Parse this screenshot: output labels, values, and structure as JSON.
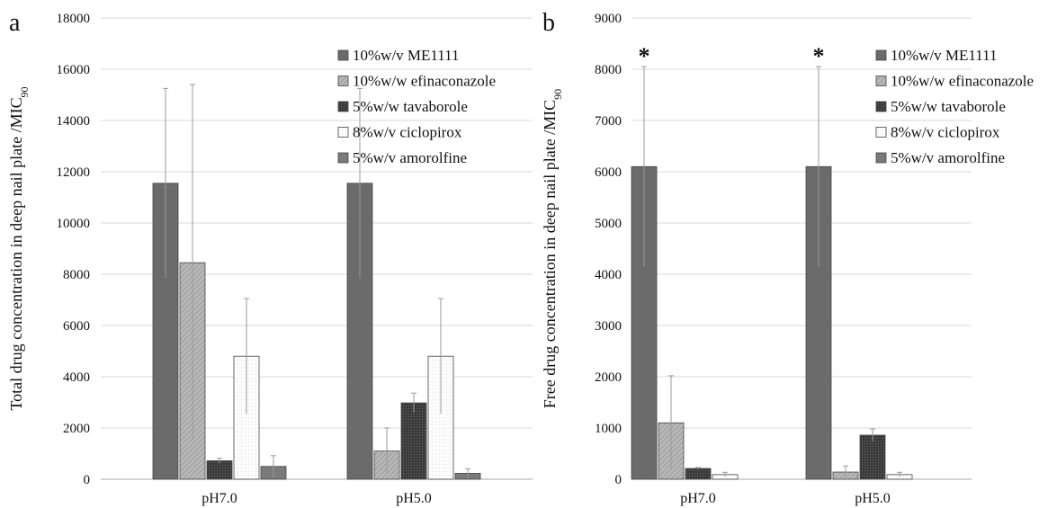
{
  "chart_data": [
    {
      "panel_label": "a",
      "type": "bar",
      "categories": [
        "pH7.0",
        "pH5.0"
      ],
      "ylabel": "Total drug concentration in deep nail plate /MIC",
      "ylabel_sub": "90",
      "ylim": [
        0,
        18000
      ],
      "yticks": [
        0,
        2000,
        4000,
        6000,
        8000,
        10000,
        12000,
        14000,
        16000,
        18000
      ],
      "yticks_text": [
        "0",
        "2000",
        "4000",
        "6000",
        "8000",
        "10000",
        "12000",
        "14000",
        "16000",
        "18000"
      ],
      "grid": true,
      "legend_position": "top-right",
      "series": [
        {
          "name": "10%w/v ME1111",
          "values": [
            11550,
            11550
          ],
          "error": [
            3700,
            3700
          ],
          "color": "#6b6b6b",
          "pattern": "solid"
        },
        {
          "name": "10%w/w efinaconazole",
          "values": [
            8450,
            1100
          ],
          "error": [
            6950,
            900
          ],
          "color": "#b3b3b3",
          "pattern": "diagonal"
        },
        {
          "name": "5%w/w tavaborole",
          "values": [
            720,
            2980
          ],
          "error": [
            100,
            380
          ],
          "color": "#3a3a3a",
          "pattern": "dots"
        },
        {
          "name": "8%w/v ciclopirox",
          "values": [
            4800,
            4800
          ],
          "error": [
            2250,
            2250
          ],
          "color": "#ffffff",
          "pattern": "grid"
        },
        {
          "name": "5%w/v amorolfine",
          "values": [
            500,
            230
          ],
          "error": [
            420,
            180
          ],
          "color": "#7a7a7a",
          "pattern": "solid"
        }
      ],
      "annotations": []
    },
    {
      "panel_label": "b",
      "type": "bar",
      "categories": [
        "pH7.0",
        "pH5.0"
      ],
      "ylabel": "Free drug concentration in deep nail plate /MIC",
      "ylabel_sub": "90",
      "ylim": [
        0,
        9000
      ],
      "yticks": [
        0,
        1000,
        2000,
        3000,
        4000,
        5000,
        6000,
        7000,
        8000,
        9000
      ],
      "yticks_text": [
        "0",
        "1000",
        "2000",
        "3000",
        "4000",
        "5000",
        "6000",
        "7000",
        "8000",
        "9000"
      ],
      "grid": true,
      "legend_position": "top-right",
      "series": [
        {
          "name": "10%w/v ME1111",
          "values": [
            6100,
            6100
          ],
          "error": [
            1950,
            1950
          ],
          "color": "#6b6b6b",
          "pattern": "solid"
        },
        {
          "name": "10%w/w efinaconazole",
          "values": [
            1100,
            140
          ],
          "error": [
            920,
            120
          ],
          "color": "#b3b3b3",
          "pattern": "diagonal"
        },
        {
          "name": "5%w/w tavaborole",
          "values": [
            210,
            860
          ],
          "error": [
            20,
            120
          ],
          "color": "#3a3a3a",
          "pattern": "dots"
        },
        {
          "name": "8%w/v ciclopirox",
          "values": [
            90,
            90
          ],
          "error": [
            45,
            45
          ],
          "color": "#ffffff",
          "pattern": "grid"
        },
        {
          "name": "5%w/v amorolfine",
          "values": [
            0,
            0
          ],
          "error": [
            0,
            0
          ],
          "color": "#7a7a7a",
          "pattern": "solid"
        }
      ],
      "annotations": [
        {
          "text": "*",
          "series": 0,
          "category": 0
        },
        {
          "text": "*",
          "series": 0,
          "category": 1
        }
      ]
    }
  ]
}
